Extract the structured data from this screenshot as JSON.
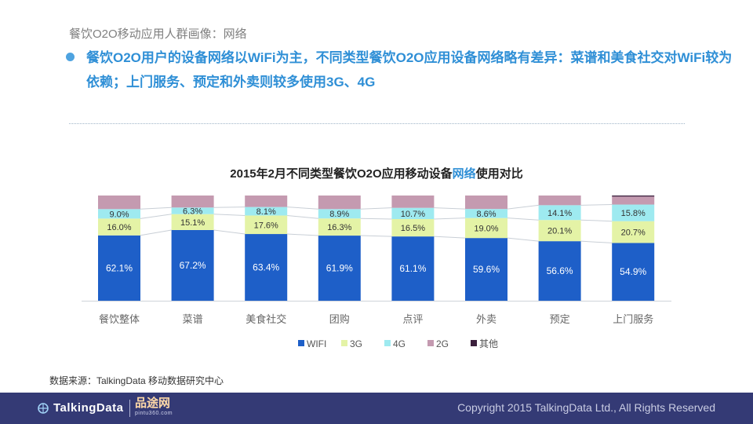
{
  "header": {
    "breadcrumb": "餐饮O2O移动应用人群画像：网络",
    "headline": "餐饮O2O用户的设备网络以WiFi为主，不同类型餐饮O2O应用设备网络略有差异：菜谱和美食社交对WiFi较为依赖；上门服务、预定和外卖则较多使用3G、4G"
  },
  "chart_title": {
    "prefix": "2015年2月不同类型餐饮O2O应用移动设备",
    "highlight": "网络",
    "suffix": "使用对比"
  },
  "chart_data": {
    "type": "bar",
    "stacked": true,
    "normalized": true,
    "title": "2015年2月不同类型餐饮O2O应用移动设备网络使用对比",
    "categories": [
      "餐饮整体",
      "菜谱",
      "美食社交",
      "团购",
      "点评",
      "外卖",
      "预定",
      "上门服务"
    ],
    "unit": "%",
    "series": [
      {
        "name": "WIFI",
        "color": "#1e5fc8",
        "label_color": "#ffffff",
        "values": [
          62.1,
          67.2,
          63.4,
          61.9,
          61.1,
          59.6,
          56.6,
          54.9
        ]
      },
      {
        "name": "3G",
        "color": "#e4f3a6",
        "label_color": "#333333",
        "values": [
          16.0,
          15.1,
          17.6,
          16.3,
          16.5,
          19.0,
          20.1,
          20.7
        ]
      },
      {
        "name": "4G",
        "color": "#9eeaf0",
        "label_color": "#333333",
        "values": [
          9.0,
          6.3,
          8.1,
          8.9,
          10.7,
          8.6,
          14.1,
          15.8
        ]
      },
      {
        "name": "2G",
        "color": "#c49ab0",
        "label_color": null,
        "values": [
          12.9,
          11.4,
          10.9,
          12.9,
          11.7,
          12.8,
          9.2,
          7.6
        ]
      },
      {
        "name": "其他",
        "color": "#3b1f3c",
        "label_color": null,
        "values": [
          0,
          0,
          0,
          0,
          0,
          0,
          0,
          1.0
        ]
      }
    ],
    "legend_position": "bottom",
    "ylim": [
      0,
      100
    ],
    "grid": false
  },
  "source_note": "数据来源：TalkingData 移动数据研究中心",
  "footer": {
    "brand": "TalkingData",
    "partner": "品途网",
    "partner_url": "pintu360.com",
    "copyright": "Copyright 2015 TalkingData Ltd., All Rights Reserved"
  }
}
